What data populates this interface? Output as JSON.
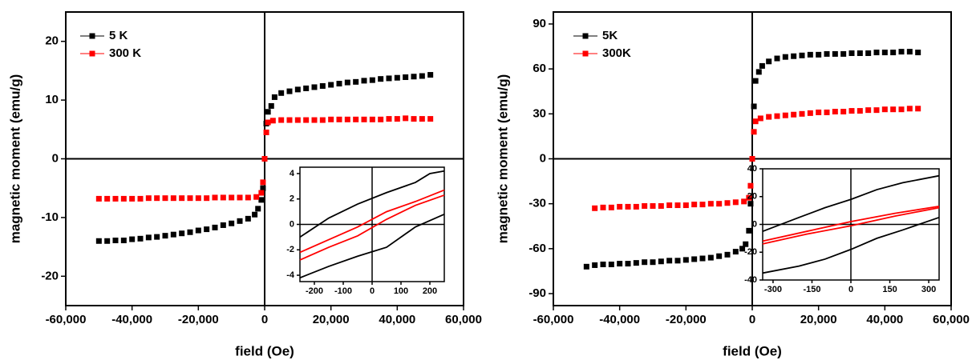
{
  "chart_data": [
    {
      "type": "scatter",
      "xlabel": "field (Oe)",
      "ylabel": "magnetic moment (emu/g)",
      "xlim": [
        -60000,
        60000
      ],
      "ylim": [
        -25,
        25
      ],
      "xticks": [
        {
          "value": -60000,
          "label": "-60,000"
        },
        {
          "value": -40000,
          "label": "-40,000"
        },
        {
          "value": -20000,
          "label": "-20,000"
        },
        0,
        {
          "value": 20000,
          "label": "20,000"
        },
        {
          "value": 40000,
          "label": "40,000"
        },
        {
          "value": 60000,
          "label": "60,000"
        }
      ],
      "yticks": [
        -20,
        -10,
        0,
        10,
        20
      ],
      "legend": "upper left",
      "series": [
        {
          "name": "5 K",
          "color": "#000000",
          "x": [
            -50000,
            -47500,
            -45000,
            -42500,
            -40000,
            -37500,
            -35000,
            -32500,
            -30000,
            -27500,
            -25000,
            -22500,
            -20000,
            -17500,
            -15000,
            -12500,
            -10000,
            -7500,
            -5000,
            -3000,
            -2000,
            -1000,
            -500,
            0,
            500,
            1000,
            2000,
            3000,
            5000,
            7500,
            10000,
            12500,
            15000,
            17500,
            20000,
            22500,
            25000,
            27500,
            30000,
            32500,
            35000,
            37500,
            40000,
            42500,
            45000,
            47500,
            50000
          ],
          "values": [
            -14.0,
            -14.0,
            -13.9,
            -13.9,
            -13.7,
            -13.6,
            -13.4,
            -13.3,
            -13.1,
            -12.9,
            -12.7,
            -12.5,
            -12.2,
            -12.0,
            -11.7,
            -11.3,
            -11.0,
            -10.6,
            -10.2,
            -9.5,
            -8.5,
            -7,
            -5,
            0,
            6,
            8,
            9,
            10.5,
            11.2,
            11.5,
            11.8,
            12.0,
            12.2,
            12.4,
            12.6,
            12.8,
            13.0,
            13.1,
            13.3,
            13.4,
            13.6,
            13.7,
            13.8,
            13.9,
            14.0,
            14.1,
            14.3
          ]
        },
        {
          "name": "300 K",
          "color": "#ff0000",
          "x": [
            -50000,
            -47500,
            -45000,
            -42500,
            -40000,
            -37500,
            -35000,
            -32500,
            -30000,
            -27500,
            -25000,
            -22500,
            -20000,
            -17500,
            -15000,
            -12500,
            -10000,
            -7500,
            -5000,
            -2500,
            -1000,
            -500,
            0,
            500,
            1000,
            2500,
            5000,
            7500,
            10000,
            12500,
            15000,
            17500,
            20000,
            22500,
            25000,
            27500,
            30000,
            32500,
            35000,
            37500,
            40000,
            42500,
            45000,
            47500,
            50000
          ],
          "values": [
            -6.8,
            -6.8,
            -6.8,
            -6.8,
            -6.8,
            -6.8,
            -6.7,
            -6.7,
            -6.7,
            -6.7,
            -6.7,
            -6.7,
            -6.7,
            -6.7,
            -6.6,
            -6.6,
            -6.6,
            -6.6,
            -6.6,
            -6.5,
            -5.8,
            -4,
            0,
            4.5,
            6.2,
            6.5,
            6.6,
            6.6,
            6.6,
            6.6,
            6.6,
            6.6,
            6.7,
            6.7,
            6.7,
            6.7,
            6.7,
            6.7,
            6.7,
            6.8,
            6.8,
            6.9,
            6.8,
            6.8,
            6.8
          ]
        }
      ]
    },
    {
      "type": "line",
      "xlim": [
        -250,
        250
      ],
      "ylim": [
        -4.5,
        4.5
      ],
      "xticks": [
        -200,
        -100,
        0,
        100,
        200
      ],
      "yticks": [
        -4,
        -2,
        0,
        2,
        4
      ],
      "series": [
        {
          "color": "#000000",
          "x": [
            -250,
            -150,
            -50,
            50,
            150,
            200,
            250
          ],
          "values": [
            -1.0,
            0.5,
            1.6,
            2.5,
            3.3,
            4.0,
            4.2
          ]
        },
        {
          "color": "#000000",
          "x": [
            -250,
            -150,
            -50,
            50,
            150,
            250
          ],
          "values": [
            -4.2,
            -3.3,
            -2.5,
            -1.8,
            -0.2,
            0.8
          ]
        },
        {
          "color": "#ff0000",
          "x": [
            -250,
            -150,
            -50,
            50,
            150,
            250
          ],
          "values": [
            -2.2,
            -1.2,
            -0.2,
            1.0,
            1.8,
            2.7
          ]
        },
        {
          "color": "#ff0000",
          "x": [
            -250,
            -150,
            -50,
            50,
            150,
            250
          ],
          "values": [
            -2.8,
            -1.8,
            -0.9,
            0.4,
            1.5,
            2.3
          ]
        }
      ]
    },
    {
      "type": "scatter",
      "xlabel": "field (Oe)",
      "ylabel": "magnetic moment (emu/g)",
      "xlim": [
        -60000,
        60000
      ],
      "ylim": [
        -98,
        98
      ],
      "xticks": [
        {
          "value": -60000,
          "label": "-60,000"
        },
        {
          "value": -40000,
          "label": "-40,000"
        },
        {
          "value": -20000,
          "label": "-20,000"
        },
        0,
        {
          "value": 20000,
          "label": "20,000"
        },
        {
          "value": 40000,
          "label": "40,000"
        },
        {
          "value": 60000,
          "label": "60,000"
        }
      ],
      "yticks": [
        -90,
        -60,
        -30,
        0,
        30,
        60,
        90
      ],
      "legend": "upper left",
      "series": [
        {
          "name": "5K",
          "color": "#000000",
          "x": [
            -50000,
            -47500,
            -45000,
            -42500,
            -40000,
            -37500,
            -35000,
            -32500,
            -30000,
            -27500,
            -25000,
            -22500,
            -20000,
            -17500,
            -15000,
            -12500,
            -10000,
            -7500,
            -5000,
            -3000,
            -2000,
            -1000,
            -500,
            0,
            500,
            1000,
            2000,
            3000,
            5000,
            7500,
            10000,
            12500,
            15000,
            17500,
            20000,
            22500,
            25000,
            27500,
            30000,
            32500,
            35000,
            37500,
            40000,
            42500,
            45000,
            47500,
            50000
          ],
          "values": [
            -72,
            -71,
            -70.5,
            -70.5,
            -70,
            -70,
            -69.5,
            -69,
            -69,
            -68.5,
            -68,
            -68,
            -67.5,
            -67,
            -66.5,
            -66,
            -65,
            -64,
            -62,
            -60,
            -57,
            -48,
            -30,
            0,
            35,
            52,
            58,
            62,
            65,
            67,
            68,
            68.5,
            69,
            69.5,
            69.5,
            70,
            70,
            70,
            70.5,
            70.5,
            70.5,
            71,
            71,
            71,
            71.5,
            71.5,
            71
          ]
        },
        {
          "name": "300K",
          "color": "#ff0000",
          "x": [
            -47500,
            -45000,
            -42500,
            -40000,
            -37500,
            -35000,
            -32500,
            -30000,
            -27500,
            -25000,
            -22500,
            -20000,
            -17500,
            -15000,
            -12500,
            -10000,
            -7500,
            -5000,
            -2500,
            -1000,
            -500,
            0,
            500,
            1000,
            2500,
            5000,
            7500,
            10000,
            12500,
            15000,
            17500,
            20000,
            22500,
            25000,
            27500,
            30000,
            32500,
            35000,
            37500,
            40000,
            42500,
            45000,
            47500,
            50000
          ],
          "values": [
            -33,
            -32.5,
            -32.5,
            -32,
            -32,
            -32,
            -31.5,
            -31.5,
            -31.5,
            -31,
            -31,
            -31,
            -30.5,
            -30.5,
            -30,
            -30,
            -29.5,
            -29,
            -28.5,
            -26,
            -18,
            0,
            18,
            25,
            27,
            28,
            28.5,
            29,
            29.5,
            30,
            30.5,
            31,
            31,
            31.5,
            31.5,
            32,
            32,
            32.5,
            32.5,
            33,
            33,
            33,
            33.5,
            33.5
          ]
        }
      ]
    },
    {
      "type": "line",
      "xlim": [
        -340,
        340
      ],
      "ylim": [
        -40,
        40
      ],
      "xticks": [
        -300,
        -150,
        0,
        150,
        300
      ],
      "yticks": [
        -40,
        -20,
        0,
        20,
        40
      ],
      "series": [
        {
          "color": "#000000",
          "x": [
            -340,
            -200,
            -100,
            0,
            100,
            200,
            340
          ],
          "values": [
            -5,
            5,
            12,
            18,
            25,
            30,
            35
          ]
        },
        {
          "color": "#000000",
          "x": [
            -340,
            -200,
            -100,
            0,
            100,
            200,
            340
          ],
          "values": [
            -35,
            -30,
            -25,
            -18,
            -10,
            -4,
            5
          ]
        },
        {
          "color": "#ff0000",
          "x": [
            -340,
            -170,
            0,
            170,
            340
          ],
          "values": [
            -12,
            -5,
            2,
            8,
            13
          ]
        },
        {
          "color": "#ff0000",
          "x": [
            -340,
            -170,
            0,
            170,
            340
          ],
          "values": [
            -14,
            -7,
            -1,
            6,
            12
          ]
        }
      ]
    }
  ]
}
